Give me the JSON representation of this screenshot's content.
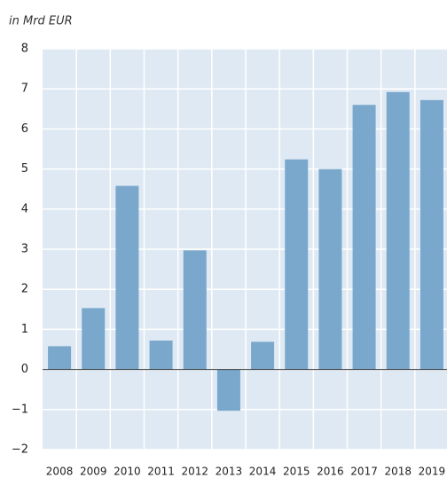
{
  "chart_data": {
    "type": "bar",
    "y_axis_label": "in Mrd EUR",
    "categories": [
      "2008",
      "2009",
      "2010",
      "2011",
      "2012",
      "2013",
      "2014",
      "2015",
      "2016",
      "2017",
      "2018",
      "2019"
    ],
    "values": [
      0.58,
      1.53,
      4.58,
      0.72,
      2.97,
      -1.03,
      0.69,
      5.24,
      5.0,
      6.6,
      6.92,
      6.72
    ],
    "color": "#7aa7cc",
    "ylim": [
      -2,
      8
    ],
    "yticks": [
      {
        "value": -2,
        "label": "−2"
      },
      {
        "value": -1,
        "label": "−1"
      },
      0,
      1,
      2,
      3,
      4,
      5,
      6,
      7,
      8
    ],
    "grid": true
  }
}
